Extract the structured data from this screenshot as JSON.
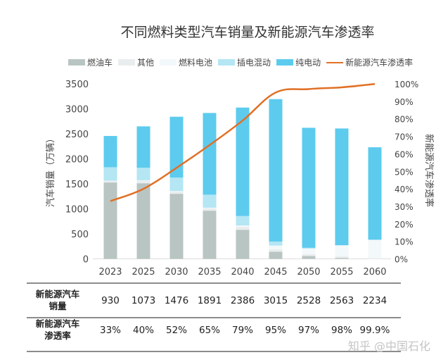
{
  "chart_data": {
    "type": "bar",
    "stacked": true,
    "title": "不同燃料类型汽车销量及新能源汽车渗透率",
    "ylabel": "汽车销量（万辆）",
    "y2label": "新能源汽车渗透率",
    "ylim": [
      0,
      3500
    ],
    "y2lim": [
      0,
      100
    ],
    "yticks": [
      0,
      500,
      1000,
      1500,
      2000,
      2500,
      3000,
      3500
    ],
    "y2ticks": [
      "0%",
      "10%",
      "20%",
      "30%",
      "40%",
      "50%",
      "60%",
      "70%",
      "80%",
      "90%",
      "100%"
    ],
    "grid": false,
    "legend_position": "top",
    "categories": [
      "2023",
      "2025",
      "2030",
      "2035",
      "2040",
      "2045",
      "2050",
      "2055",
      "2060"
    ],
    "series": [
      {
        "name": "燃油车",
        "color": "#b9c5c3",
        "values": [
          1527,
          1512,
          1301,
          963,
          582,
          141,
          56,
          19,
          2
        ]
      },
      {
        "name": "其他",
        "color": "#e9eded",
        "values": [
          30,
          50,
          45,
          45,
          60,
          50,
          40,
          30,
          0
        ]
      },
      {
        "name": "燃料电池",
        "color": "#f3f8fa",
        "values": [
          5,
          10,
          10,
          15,
          25,
          75,
          110,
          220,
          380
        ]
      },
      {
        "name": "插电混动",
        "color": "#b4e6f4",
        "values": [
          270,
          250,
          270,
          260,
          190,
          80,
          15,
          5,
          0
        ]
      },
      {
        "name": "纯电动",
        "color": "#5dcbee",
        "values": [
          625,
          827,
          1216,
          1634,
          2168,
          2848,
          2400,
          2333,
          1849
        ]
      }
    ],
    "line_series": {
      "name": "新能源汽车渗透率",
      "color": "#e07026",
      "axis": "right",
      "values": [
        33,
        40,
        52,
        65,
        79,
        95,
        97,
        98,
        99.9
      ]
    }
  },
  "table": {
    "rows": [
      {
        "label_line1": "新能源汽车",
        "label_line2": "销量",
        "values": [
          "930",
          "1073",
          "1476",
          "1891",
          "2386",
          "3015",
          "2528",
          "2563",
          "2234"
        ]
      },
      {
        "label_line1": "新能源汽车",
        "label_line2": "渗透率",
        "values": [
          "33%",
          "40%",
          "52%",
          "65%",
          "79%",
          "95%",
          "97%",
          "98%",
          "99.9%"
        ]
      }
    ]
  },
  "watermark": "知乎 @中国石化"
}
